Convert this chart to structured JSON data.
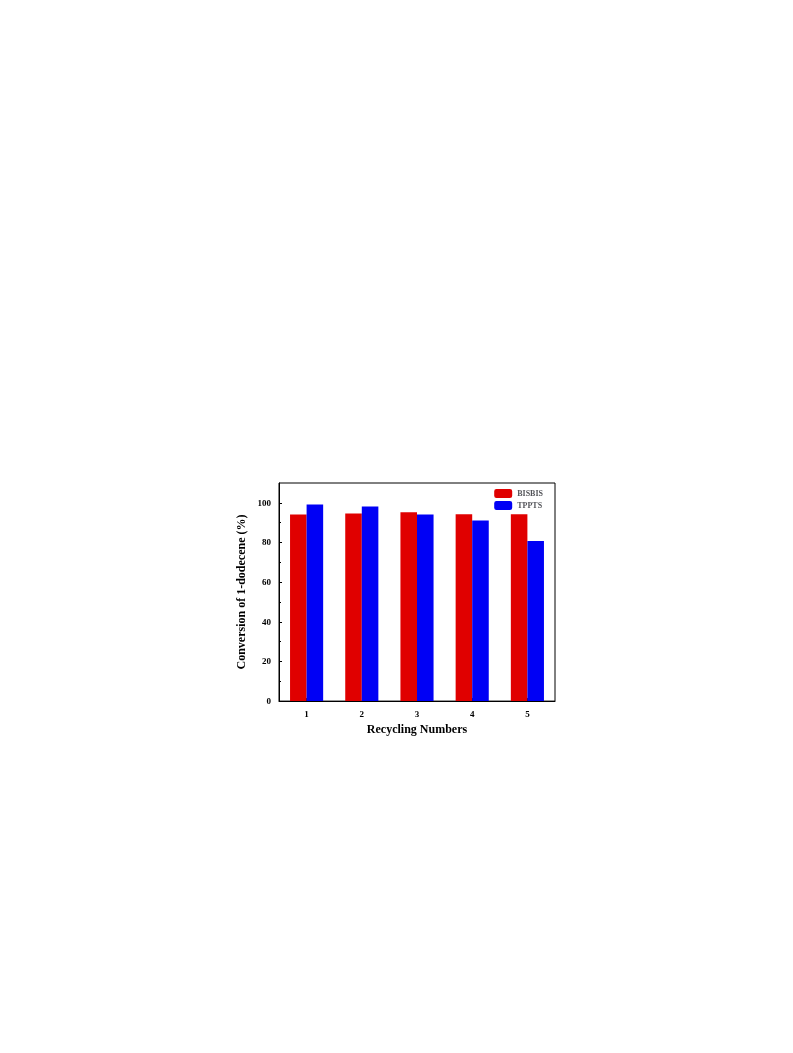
{
  "chart_data": {
    "type": "bar",
    "xlabel": "Recycling Numbers",
    "ylabel": "Conversion of 1-dodecene (%)",
    "categories": [
      "1",
      "2",
      "3",
      "4",
      "5"
    ],
    "series": [
      {
        "name": "BISBIS",
        "color": "#e00000",
        "values": [
          94.1,
          94.6,
          95.3,
          94.3,
          94.3
        ]
      },
      {
        "name": "TPPTS",
        "color": "#0000f5",
        "values": [
          99.2,
          98.2,
          94.1,
          91.1,
          80.7
        ]
      }
    ],
    "ylim": [
      0,
      110
    ],
    "yticks": [
      0,
      20,
      40,
      60,
      80,
      100
    ],
    "grid": false,
    "legend": "top right"
  }
}
